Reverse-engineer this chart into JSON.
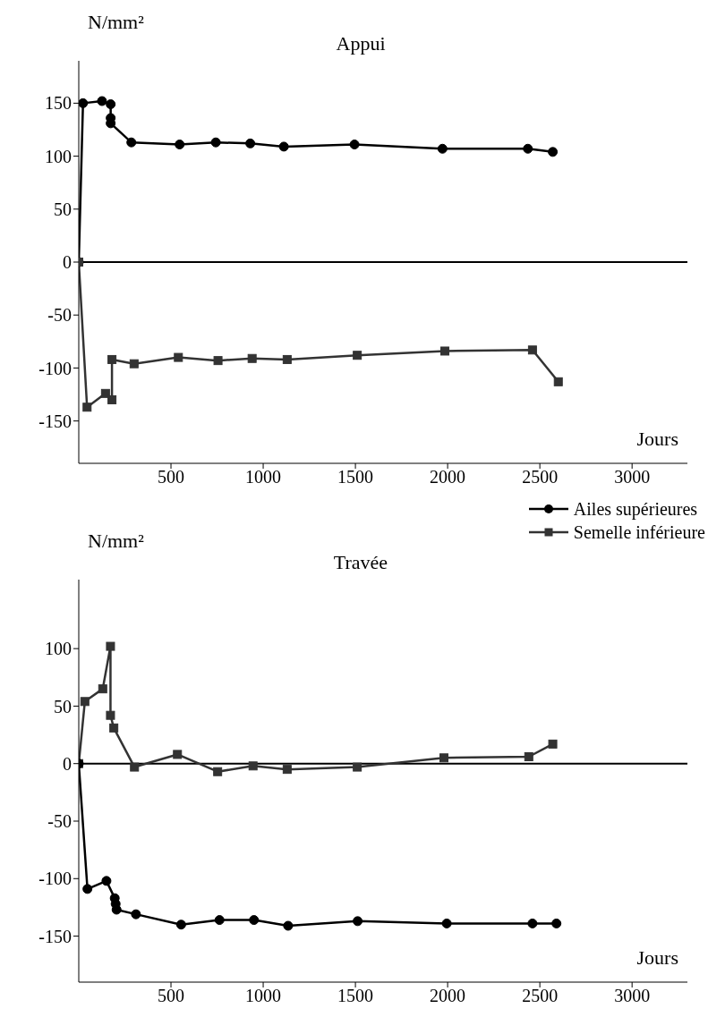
{
  "chart_data": [
    {
      "type": "line",
      "title": "Appui",
      "xlabel": "Jours",
      "ylabel": "N/mm²",
      "xlim": [
        0,
        3300
      ],
      "xticks": [
        500,
        1000,
        1500,
        2000,
        2500,
        3000
      ],
      "ylim": [
        -190,
        190
      ],
      "yticks": [
        -150,
        -100,
        -50,
        0,
        50,
        100,
        150
      ],
      "ref_lines": [
        {
          "axis": "y",
          "value": 0,
          "color": "#000000"
        }
      ],
      "legend": "bottom right",
      "line_style": "solid",
      "series": [
        {
          "name": "Ailes supérieures",
          "color": "#000000",
          "marker": "circle",
          "x": [
            0,
            23,
            126,
            173,
            173,
            173,
            285,
            547,
            743,
            930,
            1112,
            1495,
            1972,
            2435,
            2570
          ],
          "values": [
            0,
            150,
            152,
            149,
            136,
            131,
            113,
            111,
            113,
            112,
            109,
            111,
            107,
            107,
            104
          ]
        },
        {
          "name": "Semelle inférieure",
          "color": "#333333",
          "marker": "square",
          "x": [
            0,
            45,
            145,
            180,
            180,
            300,
            540,
            755,
            940,
            1130,
            1510,
            1985,
            2460,
            2600
          ],
          "values": [
            0,
            -137,
            -124,
            -130,
            -92,
            -96,
            -90,
            -93,
            -91,
            -92,
            -88,
            -84,
            -83,
            -113
          ]
        }
      ]
    },
    {
      "type": "line",
      "title": "Travée",
      "xlabel": "Jours",
      "ylabel": "N/mm²",
      "xlim": [
        0,
        3300
      ],
      "xticks": [
        500,
        1000,
        1500,
        2000,
        2500,
        3000
      ],
      "ylim": [
        -190,
        160
      ],
      "yticks": [
        -150,
        -100,
        -50,
        0,
        50,
        100
      ],
      "ref_lines": [
        {
          "axis": "y",
          "value": 0,
          "color": "#000000"
        }
      ],
      "line_style": "solid",
      "series": [
        {
          "color": "#333333",
          "marker": "square",
          "x": [
            0,
            33,
            130,
            172,
            172,
            190,
            302,
            535,
            753,
            945,
            1130,
            1510,
            1980,
            2440,
            2570
          ],
          "values": [
            0,
            54,
            65,
            102,
            42,
            31,
            -3,
            8,
            -7,
            -2,
            -5,
            -3,
            5,
            6,
            17
          ]
        },
        {
          "color": "#000000",
          "marker": "circle",
          "x": [
            0,
            47,
            150,
            195,
            200,
            205,
            310,
            555,
            763,
            950,
            1135,
            1512,
            1995,
            2460,
            2590
          ],
          "values": [
            0,
            -109,
            -102,
            -117,
            -122,
            -127,
            -131,
            -140,
            -136,
            -136,
            -141,
            -137,
            -139,
            -139,
            -139
          ]
        }
      ]
    }
  ]
}
